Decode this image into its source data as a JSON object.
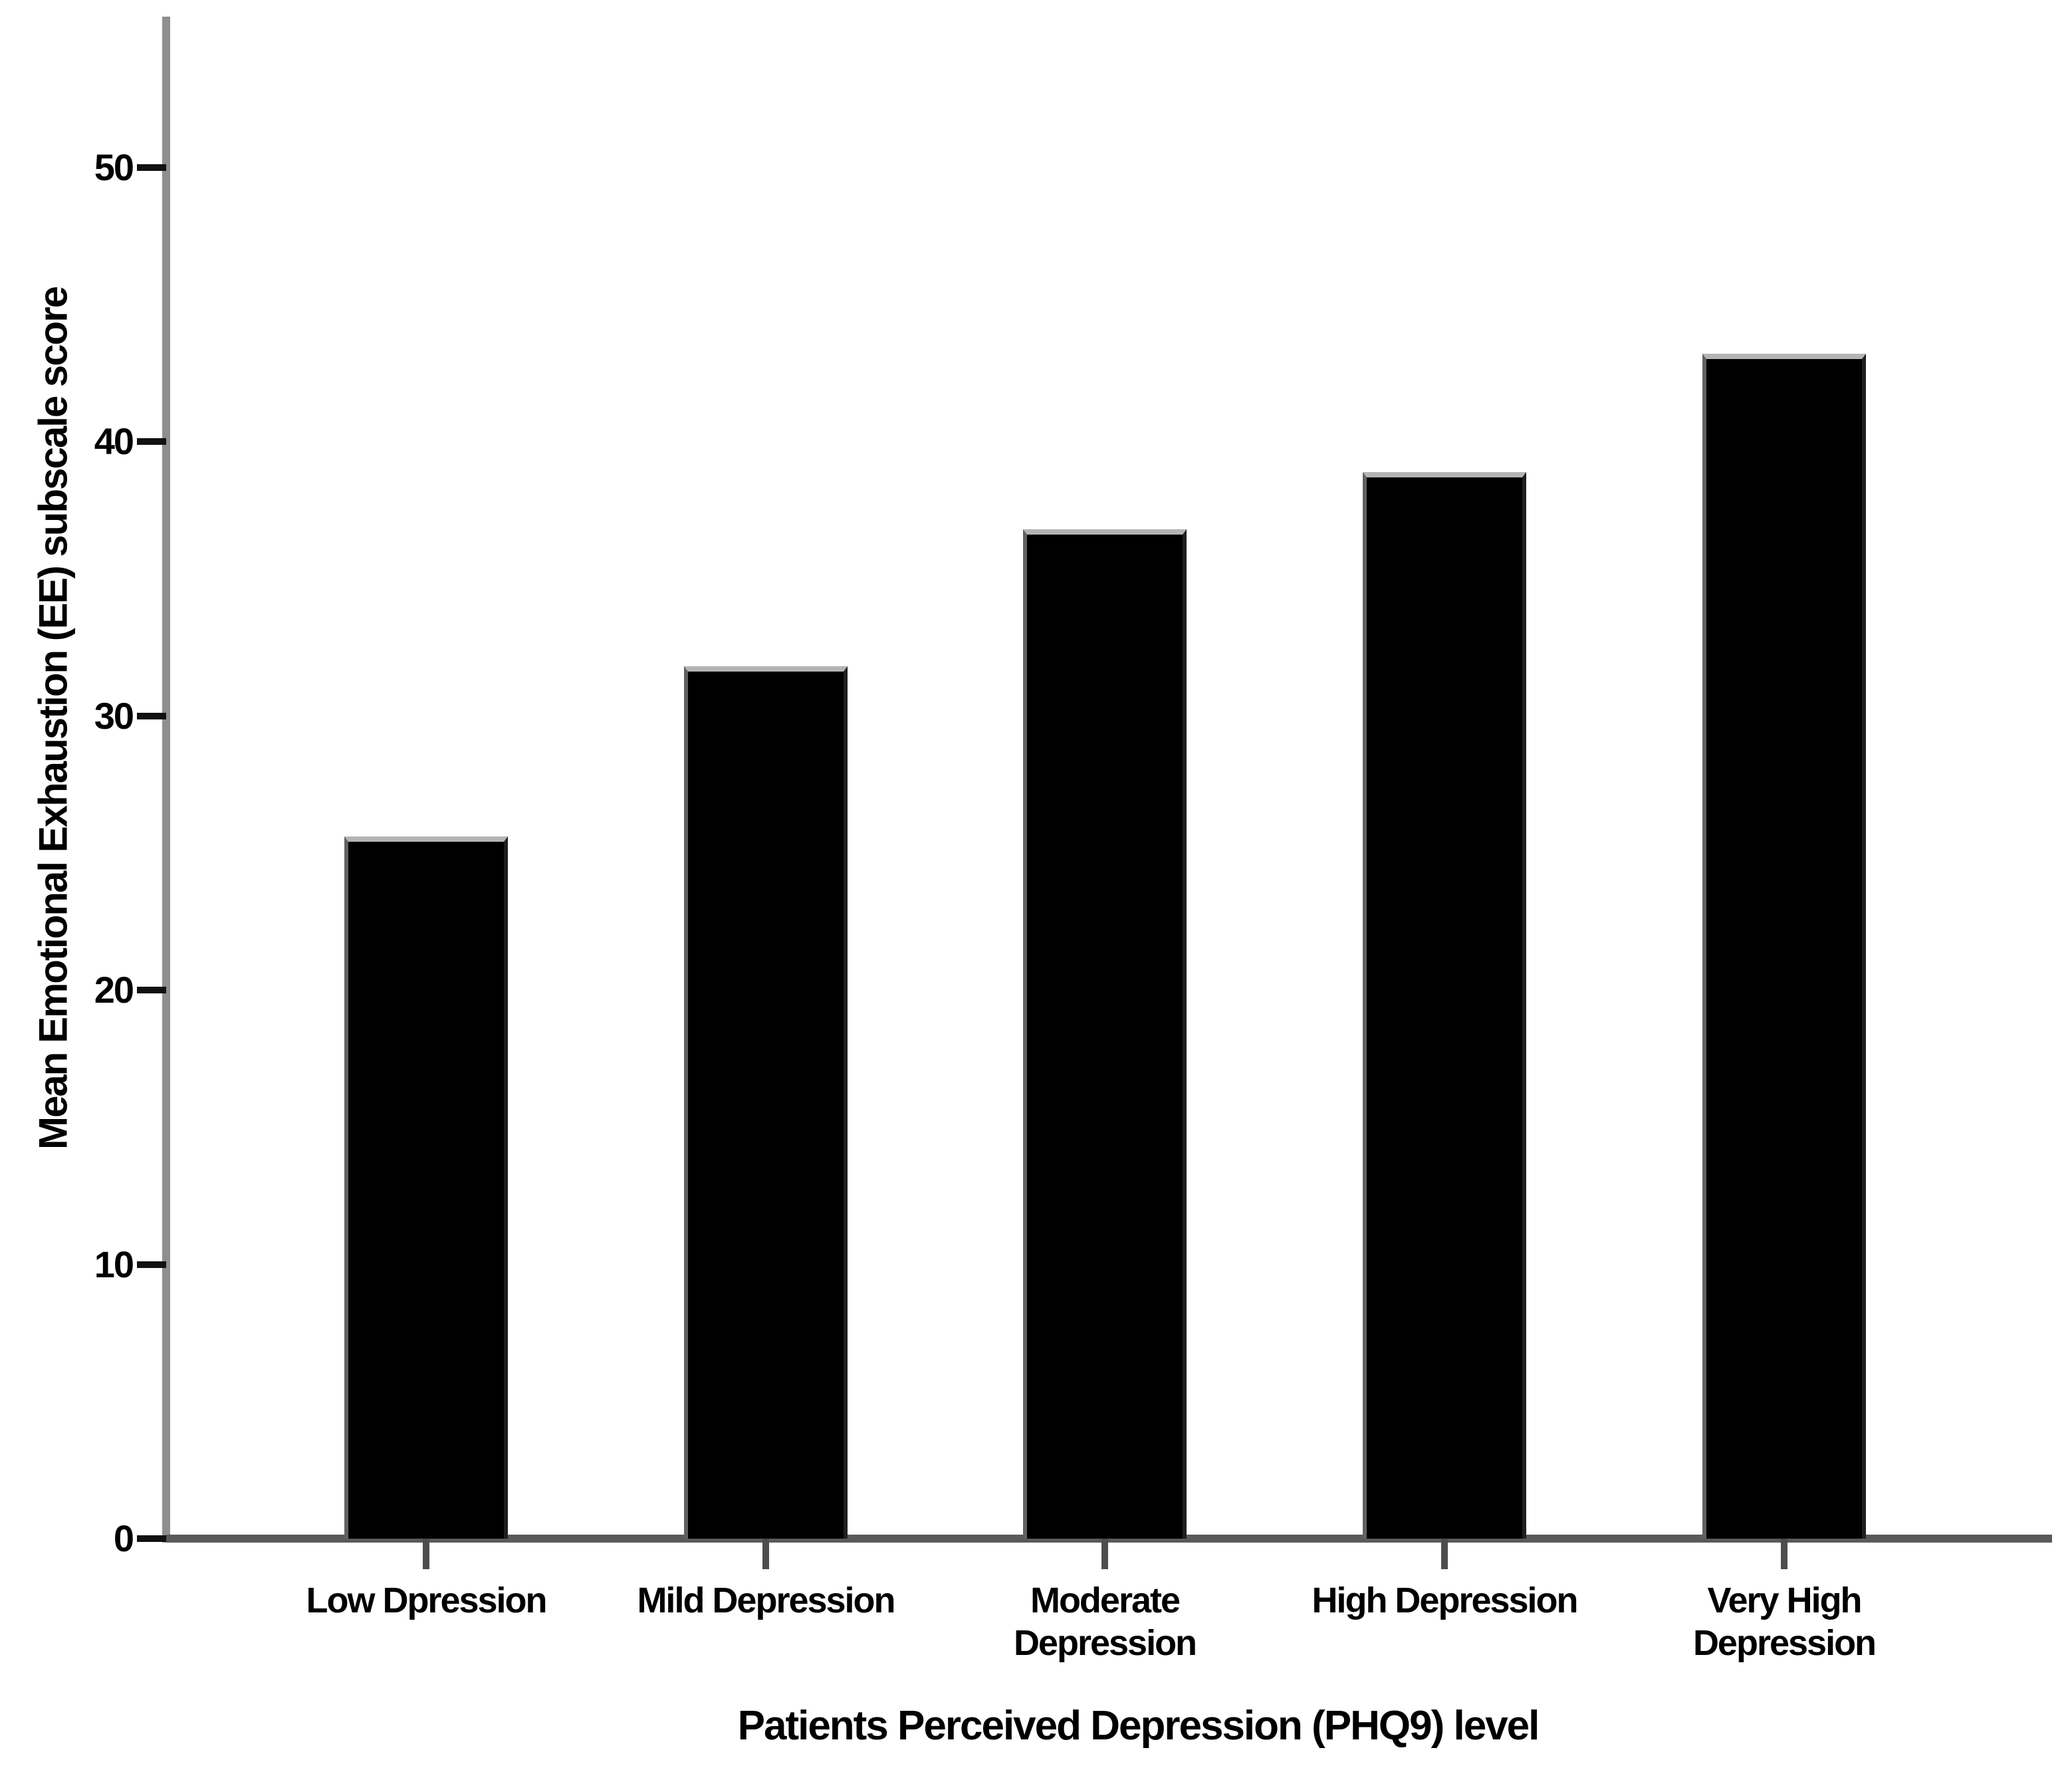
{
  "chart_data": {
    "type": "bar",
    "title": "",
    "xlabel": "Patients Perceived Depression (PHQ9) level",
    "ylabel": "Mean Emotional Exhaustion (EE) subscale score",
    "categories": [
      "Low Dpression",
      "Mild Depression",
      "Moderate\nDepression",
      "High Depression",
      "Very High\nDepression"
    ],
    "values": [
      25.6,
      31.8,
      36.8,
      38.9,
      43.2
    ],
    "yticks": [
      0,
      10,
      20,
      30,
      40,
      50
    ],
    "ylim": [
      0,
      55.5
    ],
    "grid": false,
    "legend": "none",
    "colors": {
      "bar_fill": "#000000",
      "bar_top_highlight": "#b4b4b4",
      "bar_left_edge": "#616161",
      "bar_right_edge": "#1f1f1f",
      "y_axis_line": "#8f8f8f",
      "x_axis_line": "#5a5a5a",
      "y_tick": "#111111",
      "x_tick": "#4d4d4d",
      "text": "#000000"
    }
  }
}
